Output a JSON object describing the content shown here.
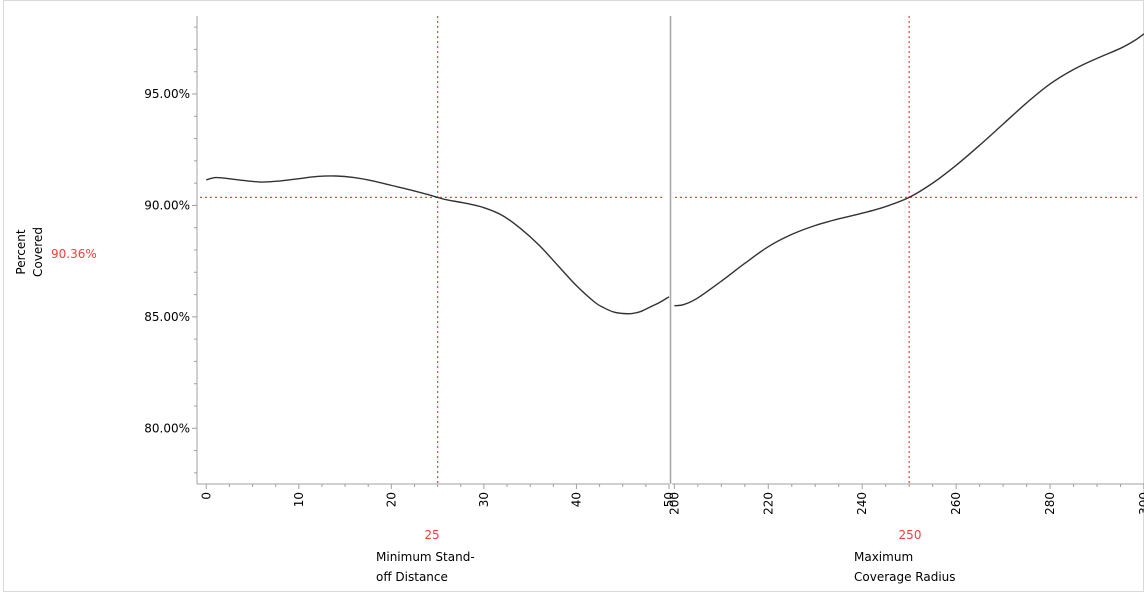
{
  "chart_data": {
    "type": "line",
    "chart_kind": "prediction-profiler",
    "y": {
      "label_lines": [
        "Percent",
        "Covered"
      ],
      "current_value": "90.36%",
      "current_value_num": 90.36,
      "ylim": [
        77.5,
        98.5
      ],
      "ticks": [
        80,
        85,
        90,
        95
      ],
      "tick_labels": [
        "80.00%",
        "85.00%",
        "90.00%",
        "95.00%"
      ]
    },
    "panels": [
      {
        "id": "standoff",
        "xlabel_lines": [
          "Minimum Stand-",
          "off Distance"
        ],
        "current_x": 25,
        "current_x_label": "25",
        "xlim": [
          -1,
          50
        ],
        "ticks": [
          0,
          10,
          20,
          30,
          40,
          50
        ],
        "tick_labels": [
          "0",
          "10",
          "20",
          "30",
          "40",
          "50"
        ],
        "series": [
          {
            "x": [
              0,
              1,
              2,
              4,
              6,
              8,
              10,
              12,
              14,
              16,
              18,
              20,
              22,
              24,
              25,
              26,
              28,
              30,
              32,
              34,
              36,
              38,
              40,
              42,
              43,
              44,
              45,
              46,
              47,
              48,
              49,
              50
            ],
            "y": [
              91.15,
              91.25,
              91.22,
              91.12,
              91.05,
              91.1,
              91.2,
              91.3,
              91.32,
              91.25,
              91.1,
              90.9,
              90.7,
              90.48,
              90.36,
              90.25,
              90.1,
              89.9,
              89.55,
              88.95,
              88.2,
              87.3,
              86.4,
              85.65,
              85.4,
              85.22,
              85.15,
              85.15,
              85.25,
              85.45,
              85.65,
              85.9
            ]
          }
        ]
      },
      {
        "id": "radius",
        "xlabel_lines": [
          "Maximum",
          "Coverage Radius"
        ],
        "current_x": 250,
        "current_x_label": "250",
        "xlim": [
          199.5,
          300
        ],
        "ticks": [
          200,
          220,
          240,
          260,
          280,
          300
        ],
        "tick_labels": [
          "200",
          "220",
          "240",
          "260",
          "280",
          "300"
        ],
        "series": [
          {
            "x": [
              200,
              202,
              205,
              210,
              215,
              220,
              225,
              230,
              235,
              240,
              245,
              250,
              255,
              260,
              265,
              270,
              275,
              280,
              285,
              290,
              295,
              298,
              300
            ],
            "y": [
              85.5,
              85.55,
              85.85,
              86.6,
              87.4,
              88.15,
              88.7,
              89.1,
              89.4,
              89.65,
              89.95,
              90.36,
              91.0,
              91.8,
              92.7,
              93.65,
              94.6,
              95.45,
              96.1,
              96.6,
              97.05,
              97.4,
              97.7
            ]
          }
        ]
      }
    ],
    "grid": false,
    "colors": {
      "curve": "#333333",
      "crosshair": "#ff3b3b",
      "axis": "#a0a0a0",
      "divider": "#a8a8a8",
      "current_text": "#ff3b3b"
    }
  }
}
